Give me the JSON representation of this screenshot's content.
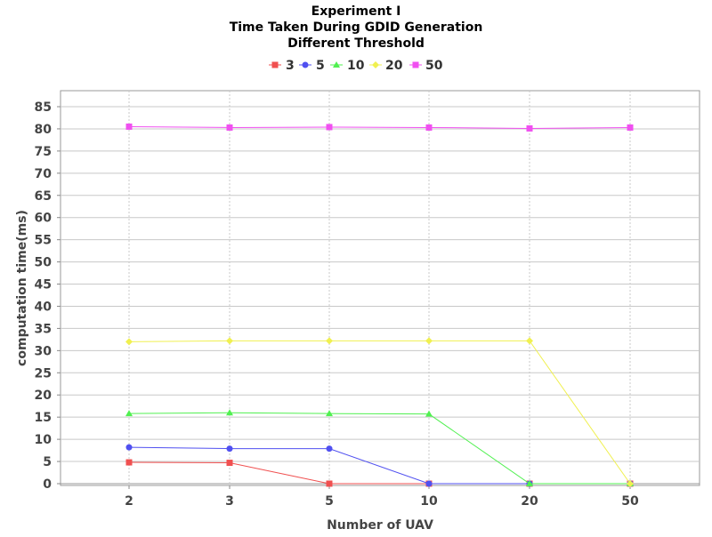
{
  "chart_data": {
    "type": "line",
    "title": "Experiment I",
    "subtitle": [
      "Time Taken During GDID Generation",
      "Different Threshold"
    ],
    "xlabel": "Number of UAV",
    "ylabel": "computation time(ms)",
    "categories": [
      "2",
      "3",
      "5",
      "10",
      "20",
      "50"
    ],
    "yticks": [
      0,
      5,
      10,
      15,
      20,
      25,
      30,
      35,
      40,
      45,
      50,
      55,
      60,
      65,
      70,
      75,
      80,
      85
    ],
    "ylim": [
      0,
      88
    ],
    "grid": true,
    "legend_position": "top-center",
    "series": [
      {
        "name": "3",
        "color": "#f05050",
        "marker": "square",
        "values": [
          4.8,
          4.7,
          0.0,
          0.0,
          0.0,
          0.0
        ]
      },
      {
        "name": "5",
        "color": "#5050f0",
        "marker": "circle",
        "values": [
          8.2,
          7.9,
          7.9,
          0.0,
          0.0,
          0.0
        ]
      },
      {
        "name": "10",
        "color": "#50f050",
        "marker": "triangle",
        "values": [
          15.8,
          16.0,
          15.8,
          15.7,
          0.0,
          0.0
        ]
      },
      {
        "name": "20",
        "color": "#f0f050",
        "marker": "diamond",
        "values": [
          32.0,
          32.2,
          32.2,
          32.2,
          32.2,
          0.0
        ]
      },
      {
        "name": "50",
        "color": "#f050f0",
        "marker": "square",
        "values": [
          80.5,
          80.3,
          80.4,
          80.3,
          80.1,
          80.3
        ]
      }
    ]
  }
}
